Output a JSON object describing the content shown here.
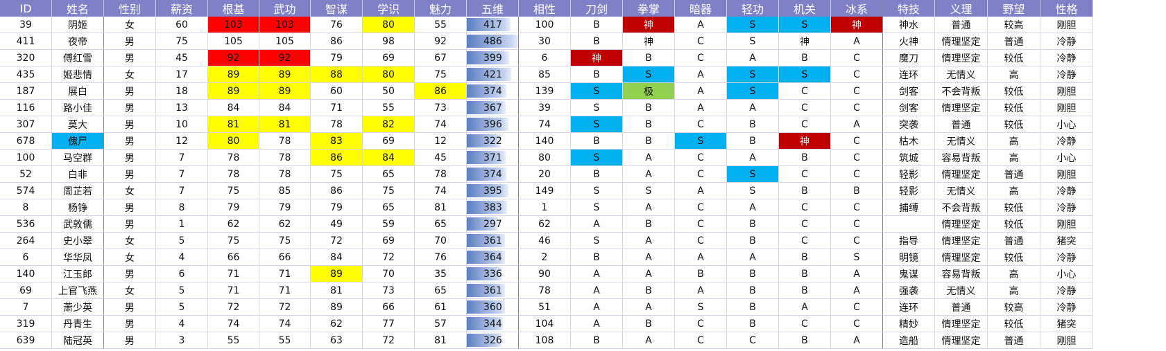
{
  "headers": [
    "ID",
    "姓名",
    "性别",
    "薪资",
    "根基",
    "武功",
    "智谋",
    "学识",
    "魅力",
    "五维",
    "相性",
    "刀剑",
    "拳掌",
    "暗器",
    "轻功",
    "机关",
    "冰系",
    "特技",
    "义理",
    "野望",
    "性格"
  ],
  "colors": {
    "header_bg": "#7f80c6",
    "red": "#ff0000",
    "yellow": "#ffff00",
    "blue": "#00b0f0",
    "darkred": "#c00000",
    "green": "#92d050"
  },
  "five_dim_max": 486,
  "rows": [
    {
      "id": "39",
      "name": "阴姬",
      "gender": "女",
      "salary": "60",
      "root": "103",
      "martial": "103",
      "wisdom": "76",
      "learning": "80",
      "charm": "55",
      "five": "417",
      "affinity": "100",
      "sword": "B",
      "fist": "神",
      "hidden": "A",
      "light": "S",
      "mech": "S",
      "ice": "神",
      "skill": "神水",
      "loyalty": "普通",
      "ambition": "较高",
      "personality": "刚胆",
      "hl": {
        "root": "red",
        "martial": "red",
        "learning": "yellow",
        "fist": "darkred",
        "light": "blue",
        "mech": "blue",
        "ice": "darkred"
      }
    },
    {
      "id": "411",
      "name": "夜帝",
      "gender": "男",
      "salary": "75",
      "root": "105",
      "martial": "105",
      "wisdom": "86",
      "learning": "98",
      "charm": "92",
      "five": "486",
      "affinity": "30",
      "sword": "B",
      "fist": "神",
      "hidden": "C",
      "light": "S",
      "mech": "神",
      "ice": "A",
      "skill": "火神",
      "loyalty": "情理坚定",
      "ambition": "普通",
      "personality": "冷静",
      "hl": {}
    },
    {
      "id": "320",
      "name": "傅红雪",
      "gender": "男",
      "salary": "45",
      "root": "92",
      "martial": "92",
      "wisdom": "79",
      "learning": "69",
      "charm": "67",
      "five": "399",
      "affinity": "6",
      "sword": "神",
      "fist": "B",
      "hidden": "C",
      "light": "A",
      "mech": "B",
      "ice": "C",
      "skill": "魔刀",
      "loyalty": "情理坚定",
      "ambition": "较低",
      "personality": "冷静",
      "hl": {
        "root": "red",
        "martial": "red",
        "sword": "darkred"
      }
    },
    {
      "id": "435",
      "name": "姬悲情",
      "gender": "女",
      "salary": "17",
      "root": "89",
      "martial": "89",
      "wisdom": "88",
      "learning": "80",
      "charm": "75",
      "five": "421",
      "affinity": "85",
      "sword": "B",
      "fist": "S",
      "hidden": "A",
      "light": "S",
      "mech": "S",
      "ice": "C",
      "skill": "连环",
      "loyalty": "无情义",
      "ambition": "高",
      "personality": "冷静",
      "hl": {
        "root": "yellow",
        "martial": "yellow",
        "wisdom": "yellow",
        "learning": "yellow",
        "fist": "blue",
        "light": "blue",
        "mech": "blue"
      }
    },
    {
      "id": "187",
      "name": "展白",
      "gender": "男",
      "salary": "18",
      "root": "89",
      "martial": "89",
      "wisdom": "60",
      "learning": "50",
      "charm": "86",
      "five": "374",
      "affinity": "139",
      "sword": "S",
      "fist": "极",
      "hidden": "A",
      "light": "S",
      "mech": "C",
      "ice": "C",
      "skill": "剑客",
      "loyalty": "不会背叛",
      "ambition": "较低",
      "personality": "刚胆",
      "hl": {
        "root": "yellow",
        "martial": "yellow",
        "charm": "yellow",
        "sword": "blue",
        "fist": "green",
        "light": "blue"
      }
    },
    {
      "id": "116",
      "name": "路小佳",
      "gender": "男",
      "salary": "13",
      "root": "84",
      "martial": "84",
      "wisdom": "71",
      "learning": "55",
      "charm": "73",
      "five": "367",
      "affinity": "39",
      "sword": "S",
      "fist": "B",
      "hidden": "A",
      "light": "A",
      "mech": "C",
      "ice": "C",
      "skill": "剑客",
      "loyalty": "情理坚定",
      "ambition": "较低",
      "personality": "刚胆",
      "hl": {}
    },
    {
      "id": "307",
      "name": "莫大",
      "gender": "男",
      "salary": "10",
      "root": "81",
      "martial": "81",
      "wisdom": "78",
      "learning": "82",
      "charm": "74",
      "five": "396",
      "affinity": "74",
      "sword": "S",
      "fist": "B",
      "hidden": "C",
      "light": "B",
      "mech": "C",
      "ice": "A",
      "skill": "突袭",
      "loyalty": "普通",
      "ambition": "较低",
      "personality": "小心",
      "hl": {
        "root": "yellow",
        "martial": "yellow",
        "learning": "yellow",
        "sword": "blue"
      }
    },
    {
      "id": "678",
      "name": "傀尸",
      "gender": "男",
      "salary": "12",
      "root": "80",
      "martial": "78",
      "wisdom": "83",
      "learning": "69",
      "charm": "12",
      "five": "322",
      "affinity": "140",
      "sword": "B",
      "fist": "B",
      "hidden": "S",
      "light": "B",
      "mech": "神",
      "ice": "C",
      "skill": "枯木",
      "loyalty": "无情义",
      "ambition": "高",
      "personality": "冷静",
      "hl": {
        "name": "blue",
        "root": "yellow",
        "wisdom": "yellow",
        "hidden": "blue",
        "mech": "darkred"
      }
    },
    {
      "id": "100",
      "name": "马空群",
      "gender": "男",
      "salary": "7",
      "root": "78",
      "martial": "78",
      "wisdom": "86",
      "learning": "84",
      "charm": "45",
      "five": "371",
      "affinity": "80",
      "sword": "S",
      "fist": "A",
      "hidden": "C",
      "light": "A",
      "mech": "B",
      "ice": "C",
      "skill": "筑城",
      "loyalty": "容易背叛",
      "ambition": "高",
      "personality": "小心",
      "hl": {
        "wisdom": "yellow",
        "learning": "yellow",
        "sword": "blue"
      }
    },
    {
      "id": "52",
      "name": "白非",
      "gender": "男",
      "salary": "7",
      "root": "78",
      "martial": "78",
      "wisdom": "75",
      "learning": "65",
      "charm": "78",
      "five": "374",
      "affinity": "20",
      "sword": "B",
      "fist": "A",
      "hidden": "C",
      "light": "S",
      "mech": "C",
      "ice": "C",
      "skill": "轻影",
      "loyalty": "情理坚定",
      "ambition": "普通",
      "personality": "刚胆",
      "hl": {
        "light": "blue"
      }
    },
    {
      "id": "574",
      "name": "周芷若",
      "gender": "女",
      "salary": "7",
      "root": "75",
      "martial": "85",
      "wisdom": "86",
      "learning": "75",
      "charm": "74",
      "five": "395",
      "affinity": "149",
      "sword": "S",
      "fist": "S",
      "hidden": "A",
      "light": "S",
      "mech": "B",
      "ice": "B",
      "skill": "轻影",
      "loyalty": "无情义",
      "ambition": "高",
      "personality": "冷静",
      "hl": {}
    },
    {
      "id": "8",
      "name": "杨铮",
      "gender": "男",
      "salary": "8",
      "root": "79",
      "martial": "79",
      "wisdom": "79",
      "learning": "65",
      "charm": "81",
      "five": "383",
      "affinity": "1",
      "sword": "S",
      "fist": "A",
      "hidden": "C",
      "light": "A",
      "mech": "C",
      "ice": "C",
      "skill": "捕缚",
      "loyalty": "不会背叛",
      "ambition": "较低",
      "personality": "冷静",
      "hl": {}
    },
    {
      "id": "536",
      "name": "武敦儒",
      "gender": "男",
      "salary": "1",
      "root": "62",
      "martial": "62",
      "wisdom": "49",
      "learning": "59",
      "charm": "65",
      "five": "297",
      "affinity": "62",
      "sword": "A",
      "fist": "B",
      "hidden": "C",
      "light": "B",
      "mech": "C",
      "ice": "C",
      "skill": "",
      "loyalty": "情理坚定",
      "ambition": "较低",
      "personality": "刚胆",
      "hl": {}
    },
    {
      "id": "264",
      "name": "史小翠",
      "gender": "女",
      "salary": "5",
      "root": "75",
      "martial": "75",
      "wisdom": "72",
      "learning": "69",
      "charm": "70",
      "five": "361",
      "affinity": "46",
      "sword": "S",
      "fist": "A",
      "hidden": "C",
      "light": "B",
      "mech": "C",
      "ice": "C",
      "skill": "指导",
      "loyalty": "情理坚定",
      "ambition": "普通",
      "personality": "猪突",
      "hl": {}
    },
    {
      "id": "6",
      "name": "华华凤",
      "gender": "女",
      "salary": "4",
      "root": "66",
      "martial": "66",
      "wisdom": "84",
      "learning": "72",
      "charm": "76",
      "five": "364",
      "affinity": "2",
      "sword": "B",
      "fist": "A",
      "hidden": "A",
      "light": "A",
      "mech": "B",
      "ice": "S",
      "skill": "明镜",
      "loyalty": "情理坚定",
      "ambition": "较低",
      "personality": "冷静",
      "hl": {}
    },
    {
      "id": "140",
      "name": "江玉郎",
      "gender": "男",
      "salary": "6",
      "root": "71",
      "martial": "71",
      "wisdom": "89",
      "learning": "70",
      "charm": "35",
      "five": "336",
      "affinity": "90",
      "sword": "A",
      "fist": "A",
      "hidden": "B",
      "light": "B",
      "mech": "B",
      "ice": "A",
      "skill": "鬼谋",
      "loyalty": "容易背叛",
      "ambition": "高",
      "personality": "小心",
      "hl": {
        "wisdom": "yellow"
      }
    },
    {
      "id": "69",
      "name": "上官飞燕",
      "gender": "女",
      "salary": "5",
      "root": "71",
      "martial": "71",
      "wisdom": "81",
      "learning": "73",
      "charm": "65",
      "five": "361",
      "affinity": "78",
      "sword": "A",
      "fist": "B",
      "hidden": "A",
      "light": "B",
      "mech": "B",
      "ice": "A",
      "skill": "强袭",
      "loyalty": "无情义",
      "ambition": "高",
      "personality": "冷静",
      "hl": {}
    },
    {
      "id": "7",
      "name": "萧少英",
      "gender": "男",
      "salary": "5",
      "root": "72",
      "martial": "72",
      "wisdom": "89",
      "learning": "66",
      "charm": "61",
      "five": "360",
      "affinity": "51",
      "sword": "A",
      "fist": "A",
      "hidden": "S",
      "light": "B",
      "mech": "A",
      "ice": "C",
      "skill": "连环",
      "loyalty": "普通",
      "ambition": "较高",
      "personality": "冷静",
      "hl": {}
    },
    {
      "id": "319",
      "name": "丹青生",
      "gender": "男",
      "salary": "4",
      "root": "74",
      "martial": "74",
      "wisdom": "62",
      "learning": "77",
      "charm": "57",
      "five": "344",
      "affinity": "104",
      "sword": "A",
      "fist": "B",
      "hidden": "C",
      "light": "B",
      "mech": "C",
      "ice": "C",
      "skill": "精妙",
      "loyalty": "情理坚定",
      "ambition": "较低",
      "personality": "猪突",
      "hl": {}
    },
    {
      "id": "639",
      "name": "陆冠英",
      "gender": "男",
      "salary": "3",
      "root": "55",
      "martial": "55",
      "wisdom": "63",
      "learning": "72",
      "charm": "81",
      "five": "326",
      "affinity": "108",
      "sword": "B",
      "fist": "A",
      "hidden": "C",
      "light": "C",
      "mech": "B",
      "ice": "A",
      "skill": "造船",
      "loyalty": "情理坚定",
      "ambition": "普通",
      "personality": "刚胆",
      "hl": {}
    }
  ]
}
